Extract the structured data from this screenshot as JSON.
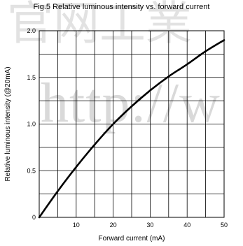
{
  "watermark": {
    "url_text": "http://w",
    "cn_text": "官网工業"
  },
  "chart_data": {
    "type": "line",
    "title": "Fig.5 Relative luminous intensity vs. forward current",
    "xlabel": "Forward current (mA)",
    "ylabel": "Relative luminous intensity (@20mA)",
    "xlim": [
      0,
      50
    ],
    "ylim": [
      0,
      2.0
    ],
    "xticks": [
      10,
      20,
      30,
      40,
      50
    ],
    "xtick_labels": [
      "10",
      "20",
      "30",
      "40",
      "50"
    ],
    "yticks": [
      0,
      0.5,
      1.0,
      1.5,
      2.0
    ],
    "ytick_labels": [
      "0",
      "0.5",
      "1.0",
      "1.5",
      "2.0"
    ],
    "grid": true,
    "series": [
      {
        "x": [
          0,
          5,
          10,
          15,
          20,
          25,
          30,
          35,
          40,
          45,
          50
        ],
        "values": [
          0,
          0.28,
          0.54,
          0.78,
          1.0,
          1.19,
          1.36,
          1.51,
          1.64,
          1.78,
          1.9
        ],
        "color": "#000000"
      }
    ]
  }
}
